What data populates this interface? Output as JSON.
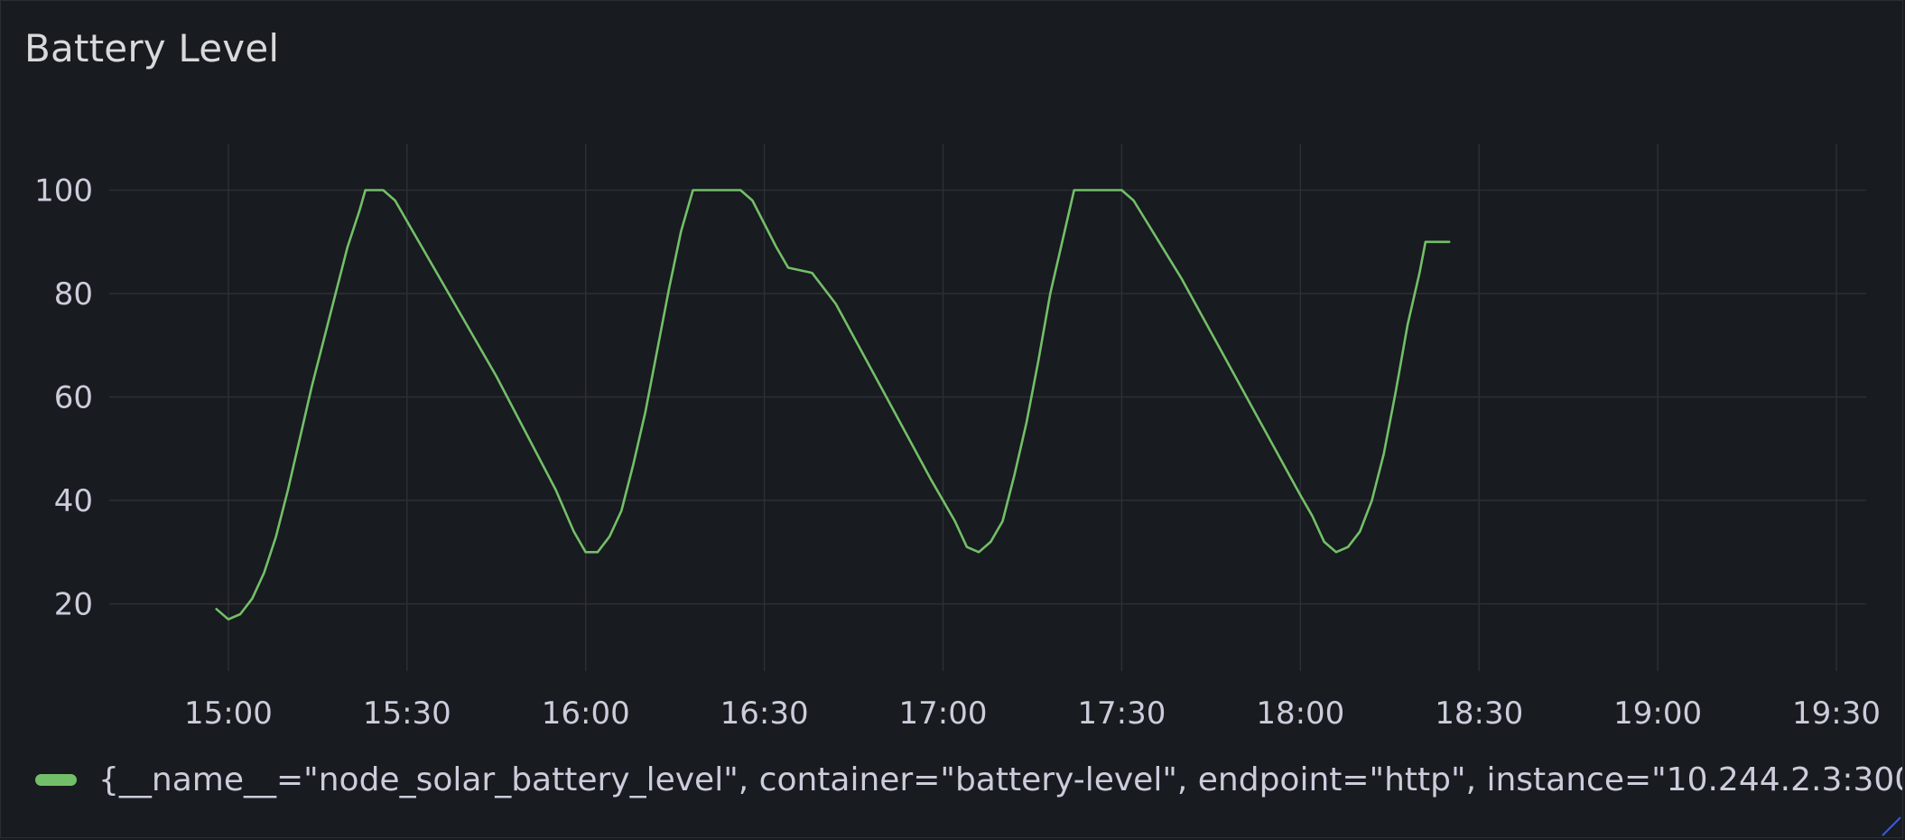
{
  "panel": {
    "title": "Battery Level"
  },
  "colors": {
    "series": "#73bf69",
    "grid": "#2c2f35",
    "background": "#181b1f"
  },
  "chart_data": {
    "type": "line",
    "title": "Battery Level",
    "xlabel": "",
    "ylabel": "",
    "x_unit": "time (HH:MM)",
    "xlim": [
      "14:40",
      "19:35"
    ],
    "ylim": [
      7,
      109
    ],
    "yticks": [
      20,
      40,
      60,
      80,
      100
    ],
    "xticks": [
      "15:00",
      "15:30",
      "16:00",
      "16:30",
      "17:00",
      "17:30",
      "18:00",
      "18:30",
      "19:00",
      "19:30"
    ],
    "grid": true,
    "legend_position": "bottom-left",
    "series": [
      {
        "name": "{__name__=\"node_solar_battery_level\", container=\"battery-level\", endpoint=\"http\", instance=\"10.244.2.3:300",
        "color": "#73bf69",
        "points": [
          [
            "14:58",
            19
          ],
          [
            "15:00",
            17
          ],
          [
            "15:02",
            18
          ],
          [
            "15:04",
            21
          ],
          [
            "15:06",
            26
          ],
          [
            "15:08",
            33
          ],
          [
            "15:10",
            42
          ],
          [
            "15:12",
            52
          ],
          [
            "15:14",
            62
          ],
          [
            "15:16",
            71
          ],
          [
            "15:18",
            80
          ],
          [
            "15:20",
            89
          ],
          [
            "15:22",
            96
          ],
          [
            "15:23",
            100
          ],
          [
            "15:26",
            100
          ],
          [
            "15:28",
            98
          ],
          [
            "15:35",
            84
          ],
          [
            "15:45",
            64
          ],
          [
            "15:55",
            42
          ],
          [
            "15:58",
            34
          ],
          [
            "16:00",
            30
          ],
          [
            "16:02",
            30
          ],
          [
            "16:04",
            33
          ],
          [
            "16:06",
            38
          ],
          [
            "16:08",
            47
          ],
          [
            "16:10",
            57
          ],
          [
            "16:12",
            69
          ],
          [
            "16:14",
            81
          ],
          [
            "16:16",
            92
          ],
          [
            "16:18",
            100
          ],
          [
            "16:26",
            100
          ],
          [
            "16:28",
            98
          ],
          [
            "16:32",
            89
          ],
          [
            "16:34",
            85
          ],
          [
            "16:38",
            84
          ],
          [
            "16:42",
            78
          ],
          [
            "16:50",
            61
          ],
          [
            "16:58",
            44
          ],
          [
            "17:02",
            36
          ],
          [
            "17:04",
            31
          ],
          [
            "17:06",
            30
          ],
          [
            "17:08",
            32
          ],
          [
            "17:10",
            36
          ],
          [
            "17:12",
            45
          ],
          [
            "17:14",
            55
          ],
          [
            "17:16",
            67
          ],
          [
            "17:18",
            80
          ],
          [
            "17:20",
            90
          ],
          [
            "17:22",
            100
          ],
          [
            "17:30",
            100
          ],
          [
            "17:32",
            98
          ],
          [
            "17:40",
            83
          ],
          [
            "17:50",
            62
          ],
          [
            "18:00",
            41
          ],
          [
            "18:02",
            37
          ],
          [
            "18:04",
            32
          ],
          [
            "18:06",
            30
          ],
          [
            "18:08",
            31
          ],
          [
            "18:10",
            34
          ],
          [
            "18:12",
            40
          ],
          [
            "18:14",
            49
          ],
          [
            "18:16",
            61
          ],
          [
            "18:18",
            74
          ],
          [
            "18:20",
            84
          ],
          [
            "18:21",
            90
          ],
          [
            "18:25",
            90
          ]
        ]
      }
    ]
  }
}
